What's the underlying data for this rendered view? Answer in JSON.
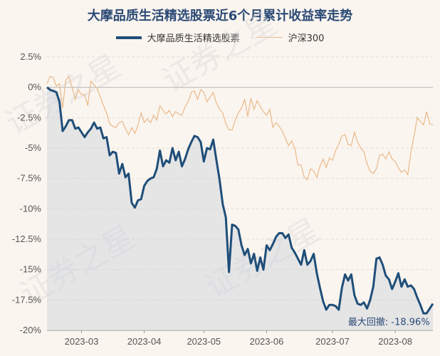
{
  "chart_data": {
    "type": "line",
    "title": "大摩品质生活精选股票近6个月累计收益率走势",
    "xlabel": "",
    "ylabel": "",
    "ylim": [
      -20,
      2.5
    ],
    "yticks": [
      2.5,
      0,
      -2.5,
      -5,
      -7.5,
      -10,
      -12.5,
      -15,
      -17.5,
      -20
    ],
    "ytick_labels": [
      "2.5%",
      "0%",
      "-2.5%",
      "-5%",
      "-7.5%",
      "-10%",
      "-12.5%",
      "-15%",
      "-17.5%",
      "-20%"
    ],
    "xtick_labels": [
      "2023-03",
      "2023-04",
      "2023-05",
      "2023-06",
      "2023-07",
      "2023-08"
    ],
    "xtick_positions": [
      11,
      31,
      50,
      70,
      91,
      111
    ],
    "x_count": 124,
    "grid": true,
    "legend_position": "top",
    "series": [
      {
        "name": "大摩品质生活精选股票",
        "color": "#1f4e79",
        "fill": true,
        "values": [
          0,
          -0.2,
          -0.3,
          -0.4,
          -1.2,
          -3.6,
          -3.2,
          -2.7,
          -2.7,
          -3.4,
          -3.3,
          -3.7,
          -4.1,
          -3.7,
          -3.4,
          -2.9,
          -3.4,
          -3.3,
          -4.2,
          -4.1,
          -5.6,
          -5.3,
          -5.4,
          -7.1,
          -6.3,
          -7.4,
          -7.1,
          -9.5,
          -9.9,
          -9.3,
          -9.2,
          -8.1,
          -7.7,
          -7.5,
          -7.4,
          -6.7,
          -5.2,
          -6.5,
          -6.0,
          -6.2,
          -5.0,
          -6.0,
          -5.3,
          -6.5,
          -5.9,
          -5.1,
          -4.5,
          -4.0,
          -4.1,
          -4.5,
          -6.1,
          -5.0,
          -5.1,
          -4.3,
          -6.0,
          -7.6,
          -9.6,
          -10.7,
          -15.2,
          -11.3,
          -11.4,
          -11.7,
          -13.0,
          -13.8,
          -13.3,
          -14.5,
          -13.7,
          -15.1,
          -14.0,
          -15.0,
          -13.0,
          -13.4,
          -12.9,
          -12.3,
          -12.0,
          -12.0,
          -12.4,
          -12.1,
          -13.2,
          -13.6,
          -14.1,
          -14.6,
          -13.4,
          -14.6,
          -14.3,
          -13.7,
          -15.3,
          -16.5,
          -17.6,
          -18.3,
          -17.9,
          -17.9,
          -18.0,
          -18.3,
          -16.5,
          -15.4,
          -15.9,
          -15.4,
          -17.1,
          -17.8,
          -17.9,
          -17.7,
          -18.2,
          -17.5,
          -16.4,
          -14.1,
          -14.0,
          -14.6,
          -15.5,
          -15.8,
          -16.6,
          -16.0,
          -15.3,
          -16.4,
          -15.8,
          -16.4,
          -16.3,
          -16.6,
          -17.3,
          -17.9,
          -18.6,
          -18.6,
          -18.2,
          -17.8
        ]
      },
      {
        "name": "沪深300",
        "color": "#e8b98a",
        "fill": false,
        "values": [
          0.3,
          0.9,
          0.8,
          0.1,
          0.3,
          -1.7,
          0.6,
          0.9,
          0,
          -1.0,
          -0.2,
          -0.6,
          -0.6,
          -1.5,
          0.5,
          0.2,
          -0.1,
          -0.8,
          -1.5,
          -2.1,
          -3.0,
          -3.2,
          -3.3,
          -2.9,
          -2.8,
          -3.4,
          -3.9,
          -3.3,
          -3.8,
          -3.1,
          -2.1,
          -2.9,
          -2.6,
          -2.9,
          -2.3,
          -2.7,
          -1.5,
          -1.9,
          -2.2,
          -1.9,
          -2.4,
          -2.0,
          -2.2,
          -2.3,
          -1.6,
          -1.2,
          -0.4,
          -0.3,
          -1.0,
          -0.2,
          -0.4,
          -1.2,
          -0.8,
          -0.4,
          -1.3,
          -1.8,
          -2.1,
          -3.0,
          -3.5,
          -3.5,
          -2.7,
          -2.1,
          -1.7,
          -1.0,
          -2.4,
          -0.9,
          -1.8,
          -1.1,
          -1.6,
          -2.0,
          -2.3,
          -1.8,
          -3.3,
          -2.9,
          -3.2,
          -3.6,
          -4.2,
          -4.8,
          -4.4,
          -5.0,
          -6.4,
          -6.4,
          -7.4,
          -7.6,
          -6.7,
          -6.9,
          -7.4,
          -6.5,
          -5.9,
          -6.6,
          -5.8,
          -6.0,
          -5.2,
          -4.7,
          -4.0,
          -3.9,
          -4.7,
          -4.8,
          -3.7,
          -4.5,
          -5.0,
          -5.3,
          -6.3,
          -6.9,
          -7.1,
          -6.7,
          -5.6,
          -5.5,
          -5.9,
          -5.3,
          -5.9,
          -6.1,
          -6.6,
          -7.0,
          -6.8,
          -7.2,
          -5.3,
          -4.0,
          -2.5,
          -2.8,
          -3.1,
          -2.0,
          -3.0,
          -3.1
        ]
      }
    ],
    "annotation": {
      "text": "最大回撤: -18.96%",
      "x_index": 109,
      "y_value": -18.96
    }
  },
  "watermark": {
    "text": "证券之星"
  }
}
